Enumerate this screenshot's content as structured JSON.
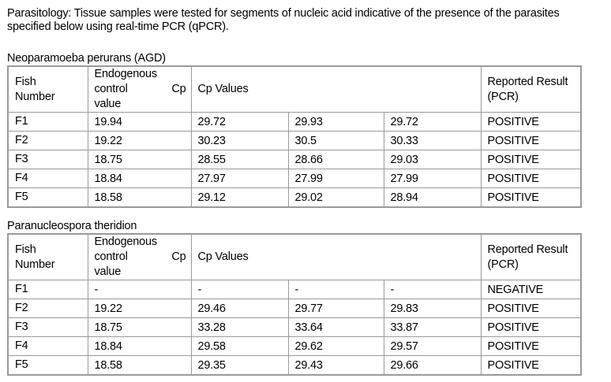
{
  "intro": "Parasitology: Tissue samples were tested for segments of nucleic acid indicative of the presence of the parasites specified below using real-time PCR (qPCR).",
  "header": {
    "fish": "Fish Number",
    "endo_line1": "Endogenous",
    "endo_line2": "control",
    "endo_cp": "Cp",
    "endo_line3": "value",
    "cp_values": "Cp Values",
    "result": "Reported Result (PCR)"
  },
  "tables": [
    {
      "title": "Neoparamoeba perurans (AGD)",
      "rows": [
        {
          "fish": "F1",
          "endo": "19.94",
          "cp1": "29.72",
          "cp2": "29.93",
          "cp3": "29.72",
          "result": "POSITIVE"
        },
        {
          "fish": "F2",
          "endo": "19.22",
          "cp1": "30.23",
          "cp2": "30.5",
          "cp3": "30.33",
          "result": "POSITIVE"
        },
        {
          "fish": "F3",
          "endo": "18.75",
          "cp1": "28.55",
          "cp2": "28.66",
          "cp3": "29.03",
          "result": "POSITIVE"
        },
        {
          "fish": "F4",
          "endo": "18.84",
          "cp1": "27.97",
          "cp2": "27.99",
          "cp3": "27.99",
          "result": "POSITIVE"
        },
        {
          "fish": "F5",
          "endo": "18.58",
          "cp1": "29.12",
          "cp2": "29.02",
          "cp3": "28.94",
          "result": "POSITIVE"
        }
      ]
    },
    {
      "title": "Paranucleospora theridion",
      "rows": [
        {
          "fish": "F1",
          "endo": "-",
          "cp1": "-",
          "cp2": "-",
          "cp3": "-",
          "result": "NEGATIVE"
        },
        {
          "fish": "F2",
          "endo": "19.22",
          "cp1": "29.46",
          "cp2": "29.77",
          "cp3": "29.83",
          "result": "POSITIVE"
        },
        {
          "fish": "F3",
          "endo": "18.75",
          "cp1": "33.28",
          "cp2": "33.64",
          "cp3": "33.87",
          "result": "POSITIVE"
        },
        {
          "fish": "F4",
          "endo": "18.84",
          "cp1": "29.58",
          "cp2": "29.62",
          "cp3": "29.57",
          "result": "POSITIVE"
        },
        {
          "fish": "F5",
          "endo": "18.58",
          "cp1": "29.35",
          "cp2": "29.43",
          "cp3": "29.66",
          "result": "POSITIVE"
        }
      ]
    }
  ]
}
